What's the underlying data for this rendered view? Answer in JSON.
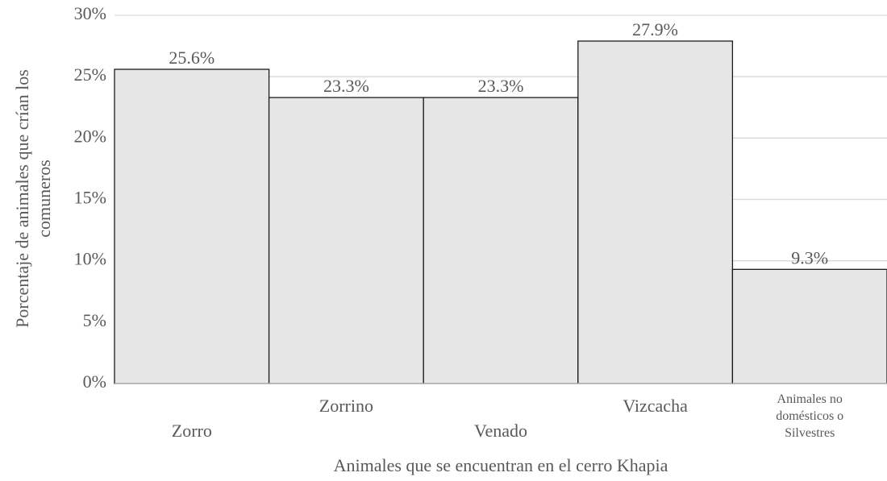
{
  "chart_data": {
    "type": "bar",
    "categories": [
      "Zorro",
      "Zorrino",
      "Venado",
      "Vizcacha",
      "Animales no domésticos o Silvestres"
    ],
    "values": [
      25.6,
      23.3,
      23.3,
      27.9,
      9.3
    ],
    "value_labels": [
      "25.6%",
      "23.3%",
      "23.3%",
      "27.9%",
      "9.3%"
    ],
    "color": "#e6e6e6",
    "xlabel": "Animales que se encuentran en el cerro Khapia",
    "ylabel": "Porcentaje de animales que crían los comuneros",
    "ylim": [
      0,
      30
    ],
    "yticks": [
      {
        "value": 0,
        "label": "0%"
      },
      {
        "value": 5,
        "label": "5%"
      },
      {
        "value": 10,
        "label": "10%"
      },
      {
        "value": 15,
        "label": "15%"
      },
      {
        "value": 20,
        "label": "20%"
      },
      {
        "value": 25,
        "label": "25%"
      },
      {
        "value": 30,
        "label": "30%"
      }
    ],
    "grid": true
  }
}
